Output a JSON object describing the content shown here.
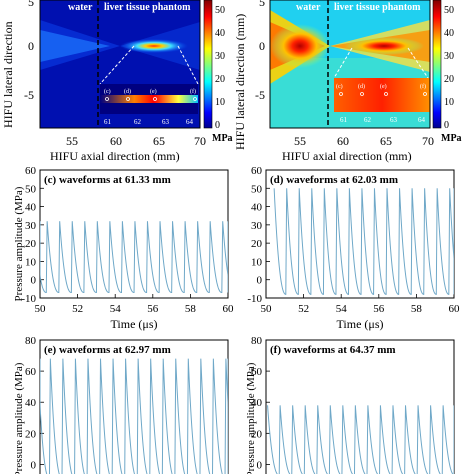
{
  "chart_data": [
    {
      "type": "heatmap",
      "panel": "a",
      "region_labels": [
        "water",
        "liver tissue phantom"
      ],
      "xlabel": "HIFU axial direction (mm)",
      "ylabel": "HIFU lateral direction",
      "xlim": [
        50,
        70
      ],
      "ylim": [
        -10,
        5
      ],
      "xticks": [
        "55",
        "60",
        "65",
        "70"
      ],
      "yticks": [
        "5",
        "0",
        "-5"
      ],
      "boundary_x": 58,
      "colorbar": {
        "ticks": [
          "0",
          "10",
          "20",
          "30",
          "40",
          "50"
        ],
        "unit": "MPa",
        "range": [
          0,
          55
        ]
      },
      "inset": {
        "ticks": [
          "61",
          "62",
          "63",
          "64"
        ],
        "markers": [
          {
            "label": "(c)",
            "x": 61.33
          },
          {
            "label": "(d)",
            "x": 62.03
          },
          {
            "label": "(e)",
            "x": 62.97
          },
          {
            "label": "(f)",
            "x": 64.37
          }
        ]
      }
    },
    {
      "type": "heatmap",
      "panel": "b",
      "region_labels": [
        "water",
        "liver tissue phantom"
      ],
      "xlabel": "HIFU axial direction (mm)",
      "ylabel": "HIFU lateral direction (mm)",
      "xlim": [
        50,
        70
      ],
      "ylim": [
        -10,
        5
      ],
      "xticks": [
        "55",
        "60",
        "65",
        "70"
      ],
      "yticks": [
        "5",
        "0",
        "-5"
      ],
      "boundary_x": 58,
      "colorbar": {
        "ticks": [
          "0",
          "10",
          "20",
          "30",
          "40",
          "50"
        ],
        "unit": "MPa",
        "range": [
          0,
          55
        ]
      },
      "inset": {
        "ticks": [
          "61",
          "62",
          "63",
          "64"
        ],
        "markers": [
          {
            "label": "(c)",
            "x": 61.33
          },
          {
            "label": "(d)",
            "x": 62.03
          },
          {
            "label": "(e)",
            "x": 62.97
          },
          {
            "label": "(f)",
            "x": 64.37
          }
        ]
      }
    },
    {
      "type": "line",
      "panel": "c",
      "title": "(c) waveforms at 61.33 mm",
      "xlabel": "Time (μs)",
      "ylabel": "Pressure amplitude (MPa)",
      "xlim": [
        50,
        60
      ],
      "ylim": [
        -10,
        60
      ],
      "xticks": [
        "50",
        "52",
        "54",
        "56",
        "58",
        "60"
      ],
      "yticks": [
        "-10",
        "0",
        "10",
        "20",
        "30",
        "40",
        "50",
        "60"
      ],
      "series": [
        {
          "peak": 32,
          "trough": -7,
          "period": 0.667,
          "first_peak": 50.38,
          "color": "#6fa8c8"
        }
      ]
    },
    {
      "type": "line",
      "panel": "d",
      "title": "(d) waveforms at 62.03 mm",
      "xlabel": "Time (μs)",
      "ylabel": "",
      "xlim": [
        50,
        60
      ],
      "ylim": [
        -10,
        60
      ],
      "xticks": [
        "50",
        "52",
        "54",
        "56",
        "58",
        "60"
      ],
      "yticks": [
        "-10",
        "0",
        "10",
        "20",
        "30",
        "40",
        "50",
        "60"
      ],
      "series": [
        {
          "peak": 50,
          "trough": -8,
          "period": 0.667,
          "first_peak": 51.1,
          "color": "#6fa8c8"
        }
      ]
    },
    {
      "type": "line",
      "panel": "e",
      "title": "(e) waveforms at 62.97 mm",
      "xlabel": "",
      "ylabel": "Pressure amplitude (MPa)",
      "xlim": [
        50,
        60
      ],
      "ylim": [
        -10,
        80
      ],
      "xticks": [],
      "yticks": [
        "0",
        "20",
        "40",
        "60",
        "80"
      ],
      "series": [
        {
          "peak": 68,
          "trough": -9,
          "period": 0.667,
          "first_peak": 50.55,
          "color": "#6fa8c8"
        }
      ]
    },
    {
      "type": "line",
      "panel": "f",
      "title": "(f) waveforms at 64.37 mm",
      "xlabel": "",
      "ylabel": "Pressure amplitude (MPa)",
      "xlim": [
        50,
        60
      ],
      "ylim": [
        -10,
        80
      ],
      "xticks": [],
      "yticks": [
        "0",
        "20",
        "40",
        "60",
        "80"
      ],
      "series": [
        {
          "peak": 38,
          "trough": -7,
          "period": 0.667,
          "first_peak": 50.75,
          "color": "#6fa8c8"
        }
      ]
    }
  ]
}
